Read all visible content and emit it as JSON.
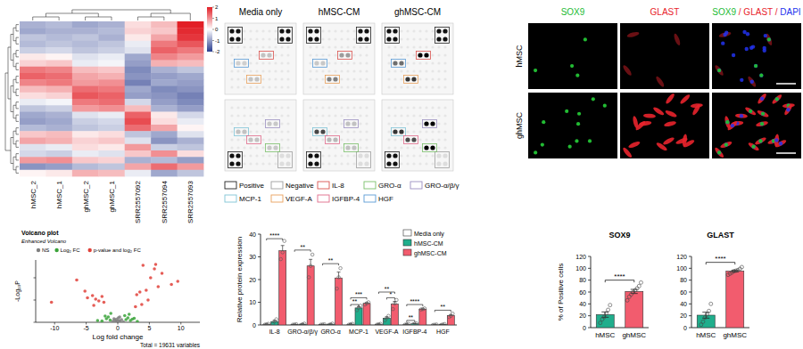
{
  "chart_data": [
    {
      "type": "heatmap",
      "categories": [
        "hMSC_2",
        "hMSC_1",
        "ghMSC_2",
        "ghMSC_1",
        "SRR2557092",
        "SRR2557094",
        "SRR2557093"
      ],
      "cells": [
        [
          -0.8,
          -0.7,
          -0.9,
          -0.8,
          0.3,
          0.6,
          2.0
        ],
        [
          -0.9,
          -0.8,
          -0.8,
          -0.7,
          0.4,
          0.5,
          1.9
        ],
        [
          -0.6,
          -0.7,
          -0.6,
          -0.8,
          0.2,
          0.8,
          1.8
        ],
        [
          -0.7,
          -0.6,
          -0.7,
          -0.6,
          -0.2,
          1.2,
          1.5
        ],
        [
          -0.5,
          -0.4,
          -0.6,
          -0.5,
          -0.3,
          1.4,
          1.2
        ],
        [
          0.2,
          0.1,
          -0.3,
          -0.2,
          -0.9,
          1.1,
          0.9
        ],
        [
          0.4,
          0.5,
          -0.2,
          -0.1,
          -1.0,
          0.7,
          0.6
        ],
        [
          1.2,
          1.1,
          0.6,
          0.5,
          -1.2,
          -0.8,
          -0.6
        ],
        [
          1.4,
          1.3,
          0.8,
          0.7,
          -1.1,
          -1.0,
          -0.9
        ],
        [
          1.1,
          1.2,
          0.9,
          1.0,
          -1.3,
          -0.9,
          -1.0
        ],
        [
          0.6,
          0.7,
          1.3,
          1.2,
          -0.9,
          -1.2,
          -1.1
        ],
        [
          0.3,
          0.4,
          1.5,
          1.4,
          -1.0,
          -1.1,
          -1.3
        ],
        [
          -0.2,
          -0.1,
          1.2,
          1.3,
          -0.4,
          -1.0,
          -1.2
        ],
        [
          -0.6,
          -0.5,
          0.9,
          1.0,
          0.6,
          -0.8,
          -1.0
        ],
        [
          -0.9,
          -0.8,
          -0.3,
          -0.2,
          1.4,
          0.2,
          -0.4
        ],
        [
          -1.0,
          -0.9,
          -0.5,
          -0.4,
          1.6,
          0.3,
          -0.2
        ],
        [
          -0.7,
          -0.8,
          -0.6,
          -0.5,
          1.3,
          0.8,
          0.1
        ],
        [
          0.5,
          0.6,
          0.2,
          0.3,
          -0.6,
          -0.9,
          -0.3
        ],
        [
          0.8,
          0.7,
          0.4,
          0.5,
          -0.3,
          -1.1,
          -0.8
        ],
        [
          -0.3,
          -0.2,
          0.3,
          0.2,
          0.9,
          -0.5,
          -0.6
        ],
        [
          -0.4,
          -0.5,
          -0.2,
          -0.3,
          0.5,
          1.0,
          0.3
        ],
        [
          0.9,
          1.0,
          0.5,
          0.4,
          -0.8,
          -0.7,
          -1.0
        ],
        [
          -1.1,
          -1.0,
          -0.7,
          -0.6,
          0.8,
          1.3,
          0.9
        ],
        [
          0.1,
          0.2,
          0.7,
          0.6,
          -0.2,
          -0.9,
          -0.6
        ]
      ],
      "colors": [
        "#2a3d8f",
        "#ffffff",
        "#e21f26"
      ],
      "colorbar_range": [
        -2,
        2
      ],
      "colorbar_ticks": [
        -2,
        -1,
        0,
        1,
        2
      ]
    },
    {
      "type": "scatter",
      "title": "Volcano plot",
      "subtitle": "Enhanced Volcano",
      "x_label": "Log fold change",
      "y_label": "-Log₁₀P",
      "annotations": [
        "Total = 19631 variables"
      ],
      "legend": "top",
      "marker": "circle",
      "tick_labels": "x",
      "xlim": [
        -13,
        13
      ],
      "xticks": [
        -10,
        -5,
        0,
        5,
        10
      ],
      "ylim": [
        0,
        140
      ],
      "yticks": [
        0,
        50,
        100
      ],
      "series": [
        {
          "name": "NS",
          "color": "#7f7f7f",
          "x": [
            -0.8,
            -0.5,
            -0.3,
            -0.1,
            0.2,
            0.4,
            0.6,
            0.9,
            -0.6,
            0.1,
            0.3,
            -0.2
          ],
          "values": [
            2,
            5,
            1,
            3,
            4,
            2,
            6,
            1,
            8,
            10,
            12,
            7
          ]
        },
        {
          "name": "Log₂ FC",
          "color": "#3aa339",
          "x": [
            -2.5,
            -1.8,
            -1.5,
            -1.2,
            1.3,
            1.6,
            2.0,
            2.6,
            3.1,
            -3.2,
            1.1,
            -1.1,
            1.8,
            2.3,
            -2.0
          ],
          "values": [
            3,
            8,
            12,
            5,
            6,
            10,
            4,
            9,
            2,
            4,
            15,
            20,
            18,
            7,
            14
          ]
        },
        {
          "name": "p-value and log₂ FC",
          "color": "#e0413a",
          "x": [
            -10.5,
            -6.5,
            -5.2,
            -4.8,
            -4.0,
            -3.5,
            -3.0,
            -2.5,
            -2.2,
            3.0,
            3.5,
            4.0,
            4.5,
            5.2,
            5.8,
            6.4,
            7.0,
            8.5,
            9.5,
            3.8,
            4.8,
            -3.8,
            2.8,
            6.0
          ],
          "values": [
            45,
            95,
            70,
            55,
            60,
            52,
            48,
            58,
            45,
            62,
            68,
            128,
            72,
            100,
            120,
            80,
            110,
            85,
            92,
            40,
            50,
            38,
            35,
            130
          ]
        }
      ]
    },
    {
      "type": "bar",
      "y_label": "Relative protein expression",
      "categories": [
        "IL-8",
        "GRO-α/β/γ",
        "GRO-α",
        "MCP-1",
        "VEGF-A",
        "IGFBP-4",
        "HGF"
      ],
      "ylim": [
        0,
        40
      ],
      "yticks": [
        0,
        10,
        20,
        30,
        40
      ],
      "legend": "top-right",
      "series": [
        {
          "name": "Media only",
          "color": "#ffffff",
          "values": [
            0.3,
            0.2,
            0.2,
            0.3,
            0.3,
            0.3,
            0.1
          ],
          "errors": [
            0.2,
            0.1,
            0.1,
            0.2,
            0.2,
            0.2,
            0.1
          ],
          "points": [
            [
              0.1,
              0.3,
              0.5
            ],
            [
              0.1,
              0.2,
              0.3
            ],
            [
              0.1,
              0.2,
              0.3
            ],
            [
              0.1,
              0.3,
              0.5
            ],
            [
              0.1,
              0.3,
              0.5
            ],
            [
              0.1,
              0.3,
              0.5
            ],
            [
              0,
              0.1,
              0.2
            ]
          ]
        },
        {
          "name": "hMSC-CM",
          "color": "#1fae8c",
          "values": [
            1.5,
            0.3,
            0.3,
            7.5,
            3,
            0.5,
            0.2
          ],
          "errors": [
            0.6,
            0.2,
            0.2,
            0.6,
            0.6,
            0.1,
            0.1
          ],
          "points": [
            [
              0.5,
              1.5,
              2.5
            ],
            [
              0,
              0.3,
              0.6
            ],
            [
              0,
              0.3,
              0.6
            ],
            [
              6.5,
              7.5,
              8.5
            ],
            [
              2,
              3,
              4
            ],
            [
              0.3,
              0.5,
              0.7
            ],
            [
              0,
              0.2,
              0.4
            ]
          ]
        },
        {
          "name": "ghMSC-CM",
          "color": "#f25c6e",
          "values": [
            32.7,
            26,
            20.7,
            9.5,
            9.2,
            7.0,
            4.2
          ],
          "errors": [
            2.3,
            2.9,
            2.6,
            0.3,
            1.2,
            0.1,
            0.4
          ],
          "points": [
            [
              29,
              32,
              37
            ],
            [
              21,
              26,
              31
            ],
            [
              16,
              21,
              25
            ],
            [
              9,
              9.5,
              10
            ],
            [
              7,
              9.5,
              11
            ],
            [
              6.8,
              7,
              7.3
            ],
            [
              3.5,
              4,
              5
            ]
          ]
        }
      ],
      "annotations": [
        {
          "text": "****",
          "category": 0,
          "pair": [
            0,
            2
          ],
          "y": 38
        },
        {
          "text": "**",
          "category": 1,
          "pair": [
            0,
            2
          ],
          "y": 33
        },
        {
          "text": "**",
          "category": 2,
          "pair": [
            0,
            2
          ],
          "y": 27
        },
        {
          "text": "**",
          "category": 3,
          "pair": [
            0,
            1
          ],
          "y": 9
        },
        {
          "text": "***",
          "category": 3,
          "pair": [
            0,
            2
          ],
          "y": 12
        },
        {
          "text": "**",
          "category": 4,
          "pair": [
            0,
            2
          ],
          "y": 14.5
        },
        {
          "text": "*",
          "category": 4,
          "pair": [
            1,
            2
          ],
          "y": 12
        },
        {
          "text": "**",
          "category": 5,
          "pair": [
            0,
            1
          ],
          "y": 2
        },
        {
          "text": "****",
          "category": 5,
          "pair": [
            0,
            2
          ],
          "y": 9
        },
        {
          "text": "**",
          "category": 6,
          "pair": [
            0,
            2
          ],
          "y": 6.5
        }
      ]
    },
    {
      "type": "bar",
      "title": "SOX9",
      "y_label": "% of Positive cells",
      "categories": [
        "hMSC",
        "ghMSC"
      ],
      "values": [
        22,
        61
      ],
      "errors": [
        4.5,
        3.5
      ],
      "colors": [
        "#1fae8c",
        "#f25c6e"
      ],
      "points": [
        [
          8,
          14,
          18,
          24,
          30,
          38
        ],
        [
          46,
          52,
          56,
          60,
          63,
          66,
          70,
          76
        ]
      ],
      "ylim": [
        0,
        120
      ],
      "yticks": [
        0,
        20,
        40,
        60,
        80,
        100,
        120
      ],
      "annotations": [
        {
          "text": "****",
          "pair": [
            0,
            1
          ],
          "y": 80
        }
      ]
    },
    {
      "type": "bar",
      "title": "GLAST",
      "categories": [
        "hMSC",
        "ghMSC"
      ],
      "values": [
        21,
        95.3
      ],
      "errors": [
        5,
        1.5
      ],
      "colors": [
        "#1fae8c",
        "#f25c6e"
      ],
      "points": [
        [
          5,
          10,
          17,
          22,
          28,
          40
        ],
        [
          89,
          91,
          93,
          95,
          96,
          97,
          99,
          102
        ]
      ],
      "ylim": [
        0,
        120
      ],
      "yticks": [
        0,
        20,
        40,
        60,
        80,
        100,
        120
      ],
      "annotations": [
        {
          "text": "****",
          "pair": [
            0,
            1
          ],
          "y": 110
        }
      ]
    }
  ],
  "dot_blot": {
    "titles": [
      "Media only",
      "hMSC-CM",
      "ghMSC-CM"
    ],
    "legend": [
      {
        "label": "Positive",
        "color": "#222222"
      },
      {
        "label": "Negative",
        "color": "#9e9e9e"
      },
      {
        "label": "IL-8",
        "color": "#d9534f"
      },
      {
        "label": "GRO-α",
        "color": "#7bbf6a"
      },
      {
        "label": "GRO-α/β/γ",
        "color": "#9b8fc0"
      },
      {
        "label": "MCP-1",
        "color": "#7fc4d6"
      },
      {
        "label": "VEGF-A",
        "color": "#e8a15c"
      },
      {
        "label": "IGFBP-4",
        "color": "#e06a8a"
      },
      {
        "label": "HGF",
        "color": "#5b9bd5"
      }
    ]
  },
  "immunostaining": {
    "channels": [
      {
        "label": "SOX9",
        "color": "#22bb33"
      },
      {
        "label": "GLAST",
        "color": "#e8242c"
      }
    ],
    "merged": [
      {
        "text": "SOX9",
        "color": "#22bb33"
      },
      {
        "text": " / GLAST / ",
        "color": "#e8242c"
      },
      {
        "text": "DAPI",
        "color": "#2233ee"
      }
    ],
    "rows": [
      "hMSC",
      "ghMSC"
    ]
  }
}
